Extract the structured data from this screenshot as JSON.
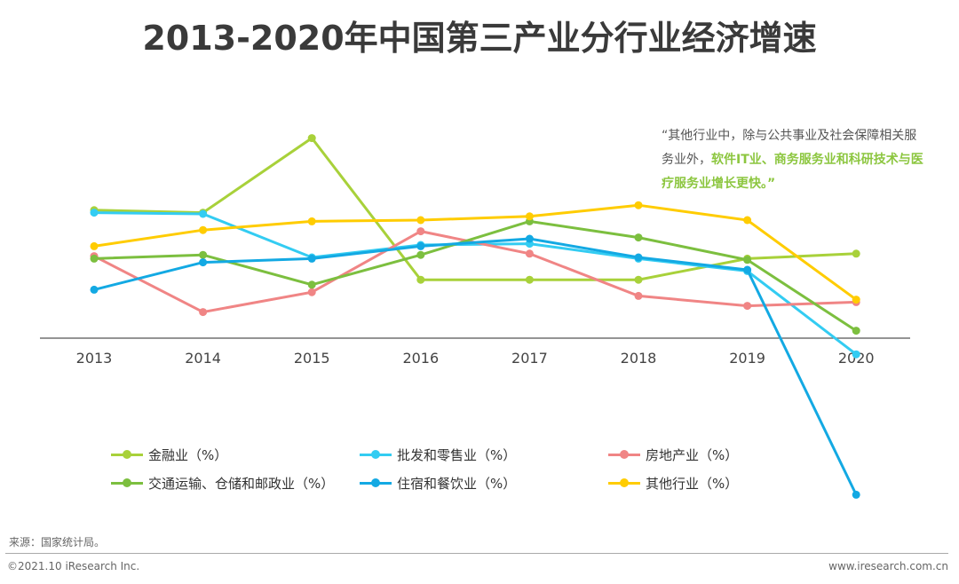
{
  "title": "2013-2020年中国第三产业分行业经济增速",
  "note": {
    "part1": "“其他行业中，除与公共事业及社会保障相关服务业外，",
    "part2": "软件IT业、商务服务业和科研技术与医疗服务业增长更快。”"
  },
  "source": "来源：国家统计局。",
  "footer": {
    "copyright": "©2021.10 iResearch Inc.",
    "site": "www.iresearch.com.cn"
  },
  "chart_data": {
    "type": "line",
    "x": [
      "2013",
      "2014",
      "2015",
      "2016",
      "2017",
      "2018",
      "2019",
      "2020"
    ],
    "ylim": [
      -13,
      17
    ],
    "grid": false,
    "legend_placement": "bottom",
    "series": [
      {
        "name": "金融业（%）",
        "color": "#a8d13a",
        "values": [
          10.3,
          10.1,
          16.1,
          4.7,
          4.7,
          4.7,
          6.4,
          6.8
        ]
      },
      {
        "name": "批发和零售业（%）",
        "color": "#33ccf2",
        "values": [
          10.1,
          10.0,
          6.5,
          7.5,
          7.6,
          6.4,
          5.4,
          -1.3
        ]
      },
      {
        "name": "房地产业（%）",
        "color": "#f08585",
        "values": [
          6.6,
          2.1,
          3.7,
          8.6,
          6.8,
          3.4,
          2.6,
          2.9
        ]
      },
      {
        "name": "交通运输、仓储和邮政业（%）",
        "color": "#7cbf3f",
        "values": [
          6.4,
          6.7,
          4.3,
          6.7,
          9.4,
          8.1,
          6.3,
          0.6
        ]
      },
      {
        "name": "住宿和餐饮业（%）",
        "color": "#13a9e3",
        "values": [
          3.9,
          6.1,
          6.4,
          7.4,
          8.0,
          6.5,
          5.5,
          -12.6
        ]
      },
      {
        "name": "其他行业（%）",
        "color": "#ffcc00",
        "values": [
          7.4,
          8.7,
          9.4,
          9.5,
          9.8,
          10.7,
          9.5,
          3.1
        ]
      }
    ]
  }
}
